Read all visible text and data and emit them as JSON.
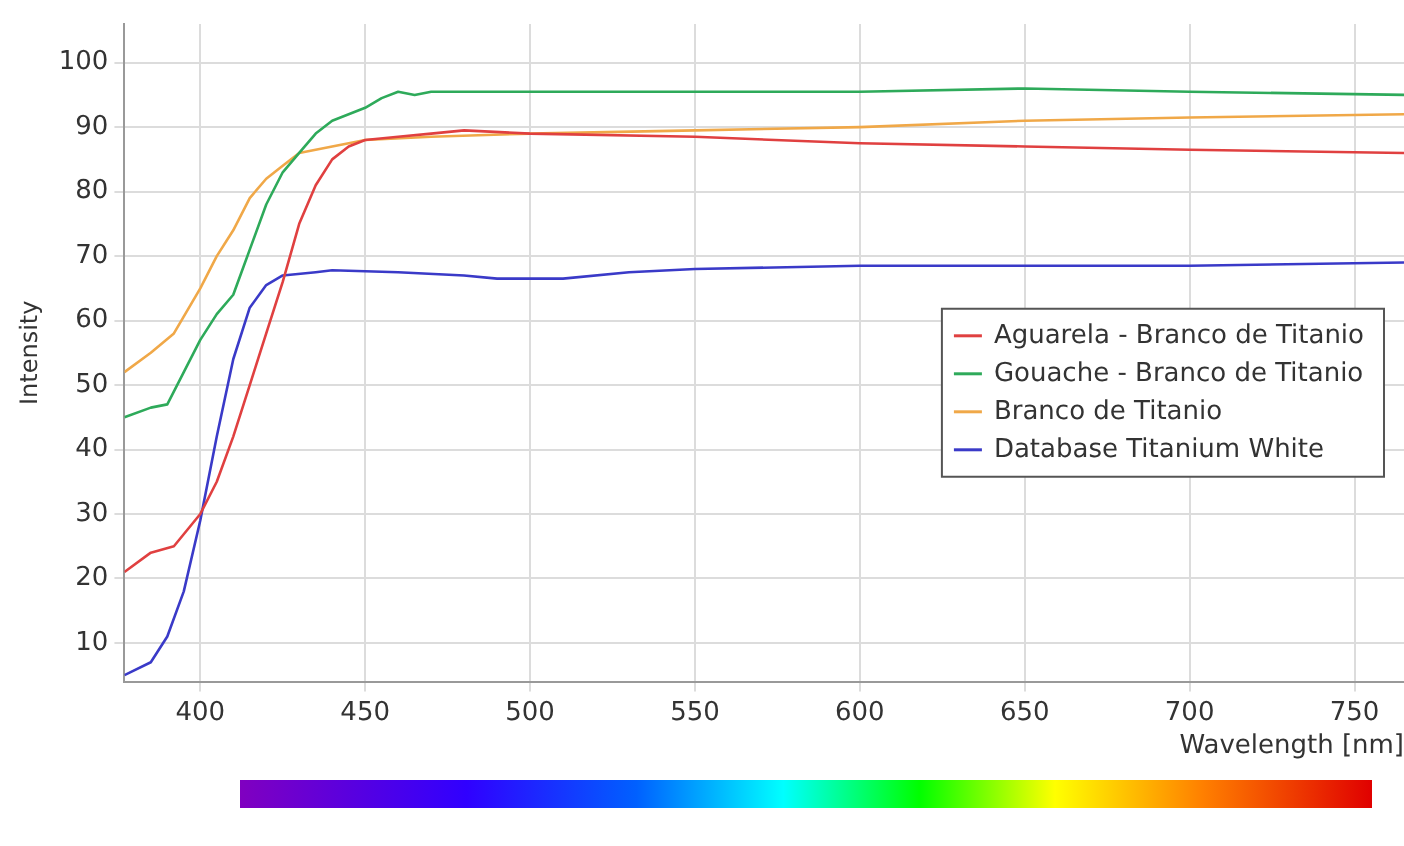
{
  "chart_data": {
    "type": "line",
    "xlabel": "Wavelength [nm]",
    "ylabel": "Intensity",
    "xlim": [
      377,
      765
    ],
    "xticks": [
      400,
      450,
      500,
      550,
      600,
      650,
      700,
      750
    ],
    "ylim": [
      4,
      106
    ],
    "yticks": [
      10,
      20,
      30,
      40,
      50,
      60,
      70,
      80,
      90,
      100
    ],
    "grid": true,
    "legend": "right",
    "marker": "none",
    "line_style": "solid",
    "series": [
      {
        "name": "Aguarela - Branco de Titanio",
        "color": "#e04040",
        "x": [
          377,
          385,
          392,
          400,
          405,
          410,
          415,
          420,
          425,
          430,
          435,
          440,
          445,
          450,
          460,
          470,
          480,
          500,
          550,
          600,
          650,
          700,
          765
        ],
        "values": [
          21,
          24,
          25,
          30,
          35,
          42,
          50,
          58,
          66,
          75,
          81,
          85,
          87,
          88,
          88.5,
          89,
          89.5,
          89,
          88.5,
          87.5,
          87,
          86.5,
          86
        ]
      },
      {
        "name": "Gouache - Branco de Titanio",
        "color": "#2eaa5a",
        "x": [
          377,
          385,
          390,
          395,
          400,
          405,
          410,
          415,
          420,
          425,
          430,
          435,
          440,
          445,
          450,
          455,
          460,
          465,
          470,
          500,
          550,
          600,
          650,
          700,
          765
        ],
        "values": [
          45,
          46.5,
          47,
          52,
          57,
          61,
          64,
          71,
          78,
          83,
          86,
          89,
          91,
          92,
          93,
          94.5,
          95.5,
          95,
          95.5,
          95.5,
          95.5,
          95.5,
          96,
          95.5,
          95
        ]
      },
      {
        "name": "Branco de Titanio",
        "color": "#f0a848",
        "x": [
          377,
          385,
          392,
          400,
          405,
          410,
          415,
          420,
          425,
          430,
          440,
          450,
          470,
          500,
          550,
          600,
          650,
          700,
          765
        ],
        "values": [
          52,
          55,
          58,
          65,
          70,
          74,
          79,
          82,
          84,
          86,
          87,
          88,
          88.5,
          89,
          89.5,
          90,
          91,
          91.5,
          92
        ]
      },
      {
        "name": "Database Titanium White",
        "color": "#3a3ac8",
        "x": [
          377,
          385,
          390,
          395,
          400,
          405,
          410,
          415,
          420,
          425,
          435,
          440,
          460,
          480,
          490,
          510,
          530,
          550,
          600,
          650,
          700,
          765
        ],
        "values": [
          5,
          7,
          11,
          18,
          29,
          42,
          54,
          62,
          65.5,
          67,
          67.5,
          67.8,
          67.5,
          67,
          66.5,
          66.5,
          67.5,
          68,
          68.5,
          68.5,
          68.5,
          69
        ]
      }
    ]
  }
}
